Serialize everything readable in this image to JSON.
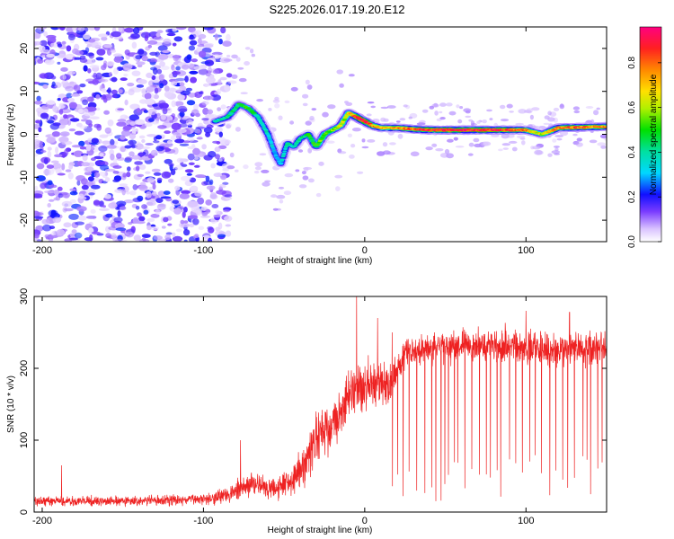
{
  "title": "S225.2026.017.19.20.E12",
  "colorbar": {
    "label": "Normalized spectral amplitude",
    "ticks": [
      "0.0",
      "0.2",
      "0.4",
      "0.6",
      "0.8"
    ],
    "tick_values": [
      0.0,
      0.2,
      0.4,
      0.6,
      0.8
    ],
    "range": [
      0,
      0.96
    ]
  },
  "chart_data": [
    {
      "type": "heatmap",
      "xlabel": "Height of straight line (km)",
      "ylabel": "Frequency (Hz)",
      "xlim": [
        -205,
        150
      ],
      "ylim": [
        -25,
        25
      ],
      "xticks": [
        -200,
        -100,
        0,
        100
      ],
      "xtick_labels": [
        "-200",
        "-100",
        "0",
        "100"
      ],
      "yticks": [
        -20,
        -10,
        0,
        10,
        20
      ],
      "ytick_labels": [
        "-20",
        "-10",
        "0",
        "10",
        "20"
      ],
      "ridge": {
        "x": [
          -93,
          -85,
          -78,
          -72,
          -66,
          -60,
          -55,
          -52,
          -48,
          -44,
          -40,
          -35,
          -30,
          -25,
          -20,
          -15,
          -10,
          -5,
          0,
          5,
          10,
          20,
          30,
          40,
          60,
          80,
          100,
          110,
          120,
          150
        ],
        "y": [
          3,
          4,
          7,
          6,
          4,
          0,
          -5,
          -7,
          -2,
          -3,
          -1,
          0,
          -3,
          0,
          1,
          2,
          5,
          4,
          3,
          2,
          1.5,
          1.5,
          1.2,
          1,
          1,
          1,
          1,
          0,
          1.5,
          1.8
        ],
        "amplitude": [
          0.35,
          0.4,
          0.45,
          0.5,
          0.4,
          0.35,
          0.3,
          0.3,
          0.4,
          0.35,
          0.4,
          0.45,
          0.5,
          0.55,
          0.55,
          0.6,
          0.6,
          0.85,
          0.9,
          0.75,
          0.7,
          0.75,
          0.8,
          0.9,
          0.9,
          0.88,
          0.75,
          0.6,
          0.8,
          0.75
        ]
      },
      "noise_region_x": [
        -205,
        -90
      ]
    },
    {
      "type": "line",
      "xlabel": "Height of straight line (km)",
      "ylabel": "SNR (10 * v/v)",
      "xlim": [
        -205,
        150
      ],
      "ylim": [
        0,
        300
      ],
      "xticks": [
        -200,
        -100,
        0,
        100
      ],
      "xtick_labels": [
        "-200",
        "-100",
        "0",
        "100"
      ],
      "yticks": [
        0,
        100,
        200,
        300
      ],
      "ytick_labels": [
        "0",
        "100",
        "200",
        "300"
      ],
      "color": "#ee2222",
      "envelope": {
        "x": [
          -205,
          -150,
          -110,
          -95,
          -80,
          -70,
          -60,
          -45,
          -35,
          -28,
          -22,
          -18,
          -10,
          -5,
          0,
          5,
          10,
          15,
          20,
          25,
          30,
          50,
          80,
          100,
          120,
          150
        ],
        "mean": [
          15,
          15,
          17,
          20,
          28,
          40,
          32,
          45,
          75,
          115,
          110,
          130,
          160,
          170,
          175,
          175,
          180,
          175,
          200,
          220,
          225,
          230,
          235,
          230,
          225,
          230
        ],
        "spread": [
          7,
          7,
          8,
          10,
          14,
          20,
          18,
          25,
          35,
          40,
          35,
          35,
          40,
          40,
          40,
          35,
          30,
          30,
          25,
          20,
          20,
          25,
          25,
          25,
          25,
          25
        ]
      },
      "spikes": [
        {
          "x": -188,
          "y": 65
        },
        {
          "x": -77,
          "y": 100
        },
        {
          "x": -5,
          "y": 300
        },
        {
          "x": 8,
          "y": 270
        },
        {
          "x": 17,
          "y": 250
        },
        {
          "x": 100,
          "y": 280
        },
        {
          "x": 127,
          "y": 278
        }
      ],
      "dropouts_start_x": 15,
      "dropouts_end_x": 150,
      "dropout_min": 15
    }
  ]
}
